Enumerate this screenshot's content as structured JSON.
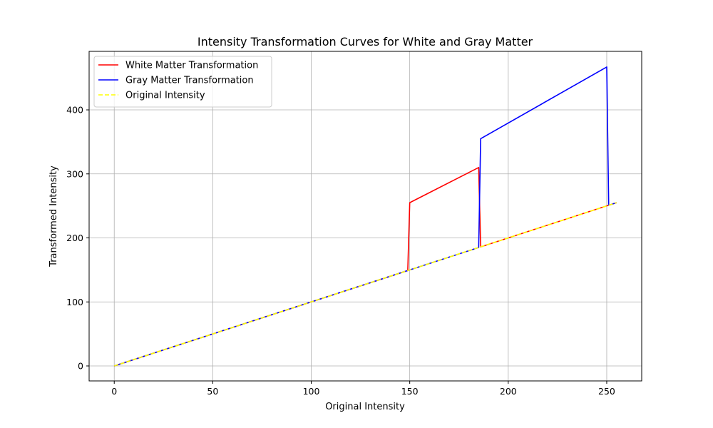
{
  "chart_data": {
    "type": "line",
    "title": "Intensity Transformation Curves for White and Gray Matter",
    "xlabel": "Original Intensity",
    "ylabel": "Transformed Intensity",
    "xlim": [
      -12.75,
      267.75
    ],
    "ylim": [
      -23.4,
      491.4
    ],
    "xticks": [
      0,
      50,
      100,
      150,
      200,
      250
    ],
    "yticks": [
      0,
      100,
      200,
      300,
      400
    ],
    "grid": true,
    "legend_position": "top-left",
    "series": [
      {
        "name": "White Matter Transformation",
        "color": "#ff0000",
        "style": "solid",
        "points": [
          [
            0,
            0
          ],
          [
            149,
            149
          ],
          [
            150,
            255
          ],
          [
            185,
            310
          ],
          [
            186,
            186
          ],
          [
            255,
            255
          ]
        ]
      },
      {
        "name": "Gray Matter Transformation",
        "color": "#0000ff",
        "style": "solid",
        "points": [
          [
            0,
            0
          ],
          [
            185,
            185
          ],
          [
            186,
            355
          ],
          [
            250,
            467
          ],
          [
            251,
            251
          ],
          [
            255,
            255
          ]
        ]
      },
      {
        "name": "Original Intensity",
        "color": "#ffff00",
        "style": "dashed",
        "points": [
          [
            0,
            0
          ],
          [
            255,
            255
          ]
        ]
      }
    ]
  }
}
